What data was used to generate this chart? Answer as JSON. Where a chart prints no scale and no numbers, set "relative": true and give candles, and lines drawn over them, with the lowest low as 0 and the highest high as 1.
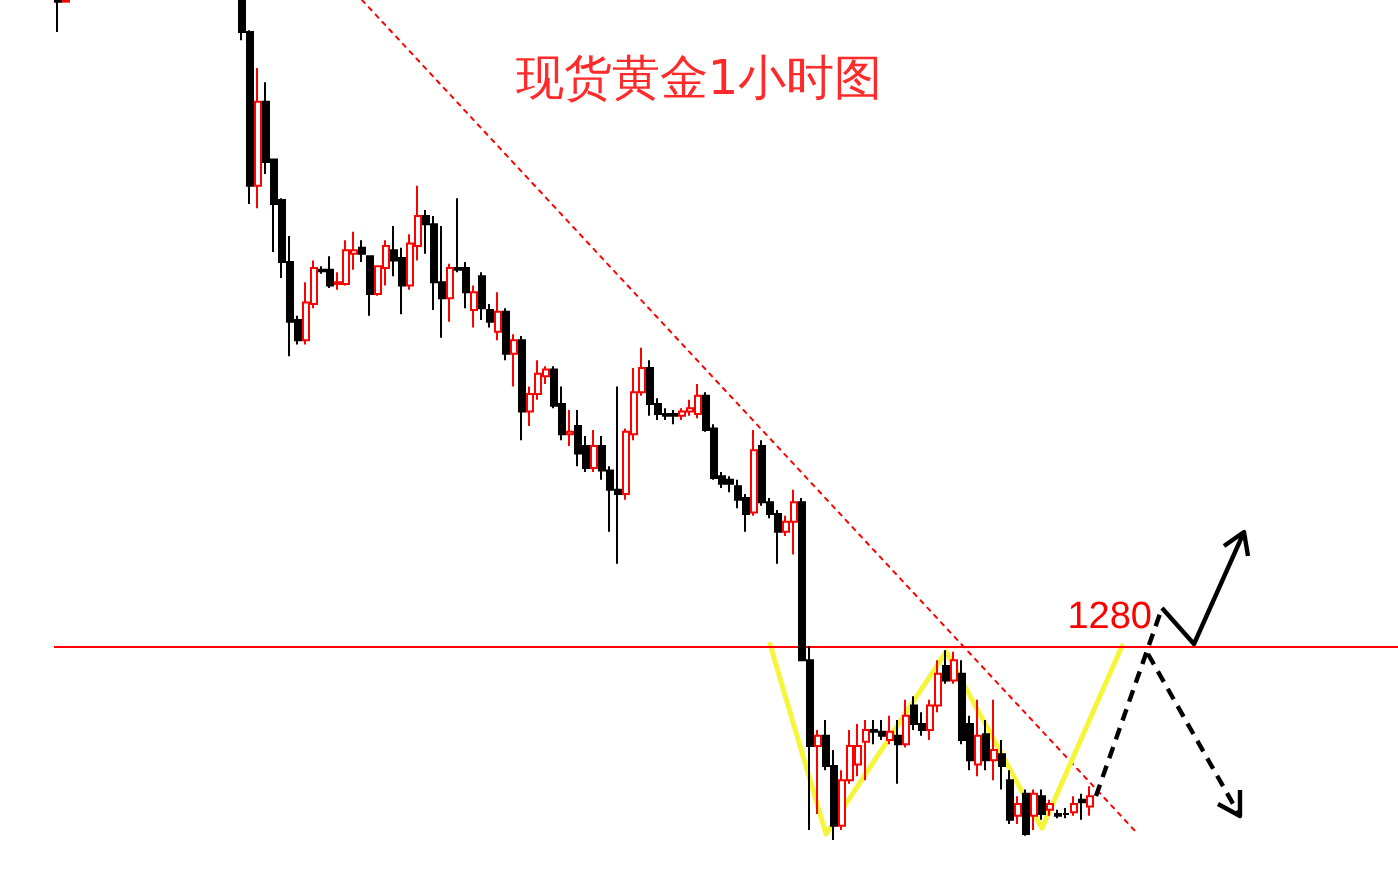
{
  "chart_data": {
    "type": "candlestick",
    "title": "现货黄金1小时图",
    "relative": true,
    "tick_labels": false,
    "categories": [
      null,
      null,
      null,
      null,
      null,
      null,
      null,
      null,
      null,
      null,
      null,
      null,
      null,
      null,
      null,
      null,
      null,
      null,
      null,
      null,
      null,
      null,
      null,
      null,
      null,
      null,
      null,
      null,
      null,
      null,
      null,
      null,
      null,
      null,
      null,
      null,
      null,
      null,
      null,
      null,
      null,
      null,
      null,
      null,
      null,
      null,
      null,
      null,
      null,
      null,
      null,
      null,
      null,
      null,
      null,
      null,
      null,
      null,
      null,
      null,
      null,
      null,
      null,
      null,
      null,
      null,
      null,
      null,
      null,
      null,
      null,
      null,
      null,
      null,
      null,
      null,
      null,
      null,
      null,
      null,
      null,
      null,
      null,
      null,
      null,
      null,
      null,
      null,
      null,
      null,
      null,
      null,
      null,
      null,
      null,
      null,
      null,
      null,
      null,
      null,
      null,
      null,
      null,
      null,
      null,
      null,
      null,
      null,
      null,
      null,
      null,
      null,
      null,
      null,
      null,
      null,
      null,
      null,
      null,
      null,
      null,
      null,
      null,
      null,
      null,
      null,
      null,
      null,
      null,
      null,
      null,
      null,
      null,
      null,
      null,
      null,
      null,
      null,
      null,
      null,
      null,
      null,
      null,
      null,
      null,
      null,
      null,
      null,
      null,
      null,
      null,
      null,
      null,
      null,
      null,
      null,
      null,
      null,
      null,
      null,
      null,
      null,
      null,
      null,
      null,
      null,
      null,
      null
    ],
    "ohlc": [
      [
        1,
        1,
        0.962,
        0.998
      ],
      [
        0.998,
        1,
        0.998,
        1
      ],
      null,
      null,
      null,
      null,
      null,
      null,
      null,
      null,
      null,
      null,
      null,
      null,
      null,
      null,
      null,
      null,
      null,
      null,
      null,
      null,
      null,
      [
        1,
        1,
        0.952,
        0.962
      ],
      [
        0.962,
        0.964,
        0.757,
        0.779
      ],
      [
        0.779,
        0.919,
        0.752,
        0.879
      ],
      [
        0.879,
        0.902,
        0.793,
        0.807
      ],
      [
        0.81,
        0.81,
        0.7,
        0.757
      ],
      [
        0.762,
        0.764,
        0.669,
        0.688
      ],
      [
        0.688,
        0.719,
        0.576,
        0.617
      ],
      [
        0.619,
        0.624,
        0.59,
        0.595
      ],
      [
        0.595,
        0.664,
        0.59,
        0.64
      ],
      [
        0.638,
        0.69,
        0.633,
        0.681
      ],
      [
        0.679,
        0.683,
        0.674,
        0.677
      ],
      [
        0.679,
        0.695,
        0.657,
        0.66
      ],
      [
        0.662,
        0.676,
        0.655,
        0.664
      ],
      [
        0.662,
        0.714,
        0.66,
        0.702
      ],
      [
        0.698,
        0.724,
        0.679,
        0.702
      ],
      [
        0.705,
        0.714,
        0.688,
        0.698
      ],
      [
        0.695,
        0.695,
        0.624,
        0.65
      ],
      [
        0.65,
        0.683,
        0.648,
        0.683
      ],
      [
        0.681,
        0.714,
        0.66,
        0.707
      ],
      [
        0.702,
        0.731,
        0.671,
        0.69
      ],
      [
        0.693,
        0.705,
        0.626,
        0.66
      ],
      [
        0.66,
        0.721,
        0.655,
        0.71
      ],
      [
        0.707,
        0.779,
        0.69,
        0.743
      ],
      [
        0.743,
        0.75,
        0.698,
        0.733
      ],
      [
        0.733,
        0.743,
        0.631,
        0.664
      ],
      [
        0.664,
        0.731,
        0.598,
        0.645
      ],
      [
        0.645,
        0.686,
        0.617,
        0.681
      ],
      [
        0.681,
        0.764,
        0.676,
        0.679
      ],
      [
        0.681,
        0.688,
        0.633,
        0.652
      ],
      [
        0.631,
        0.66,
        0.61,
        0.652
      ],
      [
        0.671,
        0.676,
        0.619,
        0.633
      ],
      [
        0.631,
        0.638,
        0.61,
        0.617
      ],
      [
        0.605,
        0.652,
        0.595,
        0.629
      ],
      [
        0.629,
        0.633,
        0.571,
        0.579
      ],
      [
        0.579,
        0.602,
        0.54,
        0.595
      ],
      [
        0.595,
        0.6,
        0.476,
        0.51
      ],
      [
        0.51,
        0.54,
        0.493,
        0.531
      ],
      [
        0.531,
        0.571,
        0.524,
        0.555
      ],
      [
        0.552,
        0.564,
        0.543,
        0.56
      ],
      [
        0.56,
        0.564,
        0.514,
        0.517
      ],
      [
        0.519,
        0.54,
        0.476,
        0.483
      ],
      [
        0.483,
        0.512,
        0.469,
        0.486
      ],
      [
        0.493,
        0.512,
        0.445,
        0.46
      ],
      [
        0.469,
        0.481,
        0.438,
        0.443
      ],
      [
        0.443,
        0.488,
        0.438,
        0.469
      ],
      [
        0.469,
        0.481,
        0.429,
        0.44
      ],
      [
        0.44,
        0.445,
        0.367,
        0.417
      ],
      [
        0.417,
        0.54,
        0.329,
        0.412
      ],
      [
        0.412,
        0.49,
        0.405,
        0.486
      ],
      [
        0.483,
        0.562,
        0.476,
        0.533
      ],
      [
        0.533,
        0.586,
        0.529,
        0.562
      ],
      [
        0.562,
        0.571,
        0.505,
        0.519
      ],
      [
        0.519,
        0.526,
        0.5,
        0.507
      ],
      [
        0.507,
        0.514,
        0.5,
        0.505
      ],
      [
        0.507,
        0.512,
        0.495,
        0.505
      ],
      [
        0.505,
        0.514,
        0.5,
        0.51
      ],
      [
        0.51,
        0.524,
        0.505,
        0.514
      ],
      [
        0.507,
        0.543,
        0.502,
        0.529
      ],
      [
        0.529,
        0.533,
        0.486,
        0.488
      ],
      [
        0.49,
        0.495,
        0.429,
        0.431
      ],
      [
        0.433,
        0.438,
        0.419,
        0.424
      ],
      [
        0.429,
        0.433,
        0.414,
        0.424
      ],
      [
        0.421,
        0.429,
        0.395,
        0.405
      ],
      [
        0.407,
        0.412,
        0.367,
        0.388
      ],
      [
        0.39,
        0.488,
        0.386,
        0.464
      ],
      [
        0.469,
        0.476,
        0.398,
        0.402
      ],
      [
        0.402,
        0.407,
        0.383,
        0.388
      ],
      [
        0.388,
        0.393,
        0.329,
        0.367
      ],
      [
        0.367,
        0.386,
        0.362,
        0.379
      ],
      [
        0.379,
        0.417,
        0.34,
        0.402
      ],
      [
        0.402,
        0.407,
        0.214,
        0.214
      ],
      [
        0.214,
        0.231,
        0.012,
        0.112
      ],
      [
        0.112,
        0.131,
        0.031,
        0.124
      ],
      [
        0.124,
        0.143,
        0.083,
        0.088
      ],
      [
        0.088,
        0.107,
        0,
        0.017
      ],
      [
        0.017,
        0.083,
        0.012,
        0.071
      ],
      [
        0.071,
        0.131,
        0.067,
        0.112
      ],
      [
        0.09,
        0.138,
        0.076,
        0.112
      ],
      [
        0.117,
        0.143,
        0.071,
        0.131
      ],
      [
        0.131,
        0.143,
        0.114,
        0.129
      ],
      [
        0.129,
        0.143,
        0.119,
        0.124
      ],
      [
        0.119,
        0.148,
        0.114,
        0.129
      ],
      [
        0.124,
        0.143,
        0.067,
        0.114
      ],
      [
        0.114,
        0.167,
        0.11,
        0.148
      ],
      [
        0.16,
        0.171,
        0.131,
        0.138
      ],
      [
        0.138,
        0.152,
        0.124,
        0.131
      ],
      [
        0.131,
        0.167,
        0.119,
        0.16
      ],
      [
        0.16,
        0.214,
        0.152,
        0.198
      ],
      [
        0.207,
        0.226,
        0.186,
        0.19
      ],
      [
        0.19,
        0.224,
        0.186,
        0.214
      ],
      [
        0.198,
        0.214,
        0.114,
        0.119
      ],
      [
        0.138,
        0.148,
        0.083,
        0.095
      ],
      [
        0.09,
        0.167,
        0.076,
        0.124
      ],
      [
        0.126,
        0.143,
        0.083,
        0.095
      ],
      [
        0.095,
        0.167,
        0.071,
        0.107
      ],
      [
        0.102,
        0.119,
        0.06,
        0.088
      ],
      [
        0.071,
        0.083,
        0.019,
        0.024
      ],
      [
        0.029,
        0.052,
        0.019,
        0.043
      ],
      [
        0.055,
        0.06,
        0.005,
        0.007
      ],
      [
        0.029,
        0.06,
        0.012,
        0.055
      ],
      [
        0.052,
        0.06,
        0.024,
        0.031
      ],
      [
        0.036,
        0.048,
        0.029,
        0.043
      ],
      [
        0.031,
        0.036,
        0.026,
        0.029
      ],
      [
        0.031,
        0.038,
        0.026,
        0.031
      ],
      [
        0.033,
        0.052,
        0.029,
        0.043
      ],
      [
        0.048,
        0.055,
        0.024,
        0.045
      ],
      [
        0.04,
        0.064,
        0.029,
        0.052
      ],
      null,
      null,
      null,
      null,
      null,
      null,
      null,
      null,
      null,
      null,
      null,
      null,
      null,
      null,
      null,
      null,
      null,
      null,
      null,
      null,
      null,
      null,
      null,
      null,
      null,
      null,
      null,
      null,
      null,
      null,
      null,
      null,
      null,
      null,
      null,
      null,
      null,
      null
    ],
    "colors": [
      "#000000",
      "#ff0000",
      null,
      null,
      null,
      null,
      null,
      null,
      null,
      null,
      null,
      null,
      null,
      null,
      null,
      null,
      null,
      null,
      null,
      null,
      null,
      null,
      null,
      "#000000",
      "#000000",
      "#ff0000",
      "#000000",
      "#000000",
      "#000000",
      "#000000",
      "#000000",
      "#ff0000",
      "#ff0000",
      "#000000",
      "#000000",
      "#ff0000",
      "#ff0000",
      "#ff0000",
      "#000000",
      "#000000",
      "#ff0000",
      "#ff0000",
      "#000000",
      "#000000",
      "#ff0000",
      "#ff0000",
      "#000000",
      "#000000",
      "#000000",
      "#ff0000",
      "#000000",
      "#000000",
      "#ff0000",
      "#000000",
      "#000000",
      "#ff0000",
      "#000000",
      "#ff0000",
      "#000000",
      "#ff0000",
      "#ff0000",
      "#ff0000",
      "#000000",
      "#000000",
      "#ff0000",
      "#000000",
      "#000000",
      "#ff0000",
      "#000000",
      "#000000",
      "#000000",
      "#ff0000",
      "#ff0000",
      "#ff0000",
      "#000000",
      "#000000",
      "#000000",
      "#000000",
      "#ff0000",
      "#ff0000",
      "#ff0000",
      "#000000",
      "#000000",
      "#000000",
      "#000000",
      "#000000",
      "#000000",
      "#ff0000",
      "#000000",
      "#000000",
      "#000000",
      "#ff0000",
      "#ff0000",
      "#000000",
      "#000000",
      "#ff0000",
      "#000000",
      "#000000",
      "#ff0000",
      "#ff0000",
      "#ff0000",
      "#ff0000",
      "#000000",
      "#000000",
      "#ff0000",
      "#000000",
      "#ff0000",
      "#000000",
      "#000000",
      "#ff0000",
      "#ff0000",
      "#000000",
      "#ff0000",
      "#000000",
      "#000000",
      "#ff0000",
      "#000000",
      "#ff0000",
      "#000000",
      "#000000",
      "#ff0000",
      "#000000",
      "#ff0000",
      "#000000",
      "#ff0000",
      "#000000",
      "#000000",
      "#ff0000",
      "#000000",
      "#ff0000",
      null,
      null,
      null,
      null,
      null,
      null,
      null,
      null,
      null,
      null,
      null,
      null,
      null,
      null,
      null,
      null,
      null,
      null,
      null,
      null,
      null,
      null,
      null,
      null,
      null,
      null,
      null,
      null,
      null,
      null,
      null,
      null,
      null,
      null,
      null,
      null,
      null,
      null
    ],
    "series": [
      {
        "type": "line",
        "color": "#ff0000",
        "line_style": "dotted",
        "values": [
          null,
          null,
          null,
          null,
          null,
          null,
          null,
          null,
          null,
          null,
          null,
          null,
          null,
          null,
          null,
          null,
          null,
          null,
          null,
          null,
          null,
          null,
          null,
          null,
          null,
          null,
          null,
          null,
          null,
          null,
          null,
          null,
          null,
          null,
          null,
          null,
          null,
          null,
          1,
          null,
          null,
          null,
          null,
          null,
          null,
          null,
          null,
          null,
          null,
          null,
          null,
          null,
          null,
          null,
          null,
          null,
          null,
          null,
          null,
          null,
          null,
          null,
          null,
          null,
          null,
          null,
          null,
          null,
          null,
          null,
          null,
          null,
          null,
          null,
          null,
          null,
          null,
          null,
          null,
          null,
          null,
          null,
          null,
          null,
          null,
          null,
          null,
          null,
          null,
          null,
          null,
          null,
          null,
          null,
          null,
          null,
          null,
          null,
          null,
          null,
          null,
          null,
          null,
          null,
          null,
          null,
          null,
          null,
          null,
          null,
          null,
          null,
          null,
          null,
          null,
          null,
          null,
          null,
          null,
          null,
          null,
          null,
          null,
          null,
          null,
          null,
          null,
          null,
          null,
          null,
          null,
          null,
          null,
          null,
          null,
          0.007,
          null,
          null,
          null,
          null,
          null,
          null,
          null,
          null,
          null,
          null,
          null,
          null,
          null,
          null,
          null,
          null,
          null,
          null,
          null,
          null,
          null,
          null,
          null,
          null,
          null,
          null,
          null,
          null,
          null,
          null,
          null,
          null
        ]
      },
      {
        "type": "line",
        "color": "#f5f53c",
        "line_style": "solid",
        "values": [
          null,
          null,
          null,
          null,
          null,
          null,
          null,
          null,
          null,
          null,
          null,
          null,
          null,
          null,
          null,
          null,
          null,
          null,
          null,
          null,
          null,
          null,
          null,
          null,
          null,
          null,
          null,
          null,
          null,
          null,
          null,
          null,
          null,
          null,
          null,
          null,
          null,
          null,
          null,
          null,
          null,
          null,
          null,
          null,
          null,
          null,
          null,
          null,
          null,
          null,
          null,
          null,
          null,
          null,
          null,
          null,
          null,
          null,
          null,
          null,
          null,
          null,
          null,
          null,
          null,
          null,
          null,
          null,
          null,
          null,
          null,
          null,
          null,
          null,
          null,
          null,
          null,
          null,
          null,
          null,
          null,
          null,
          null,
          null,
          null,
          null,
          null,
          null,
          null,
          0.233,
          null,
          null,
          null,
          null,
          null,
          null,
          0.007,
          null,
          null,
          null,
          null,
          null,
          null,
          null,
          null,
          null,
          null,
          null,
          null,
          null,
          null,
          0.224,
          null,
          null,
          null,
          null,
          null,
          null,
          null,
          null,
          null,
          null,
          null,
          0.014,
          null,
          null,
          null,
          null,
          null,
          null,
          null,
          null,
          null,
          0.231,
          null,
          null,
          null,
          null,
          null,
          null,
          null,
          null,
          null,
          null,
          null,
          null,
          null,
          null,
          null,
          null,
          null,
          null,
          null,
          null,
          null,
          null,
          null,
          null,
          null,
          null,
          null,
          null,
          null,
          null,
          null,
          null,
          null,
          null
        ]
      }
    ],
    "ref_lines": [
      {
        "axis": "y",
        "value": 0.229,
        "color": "#ff0000"
      }
    ],
    "annotations": [
      "1280"
    ]
  }
}
